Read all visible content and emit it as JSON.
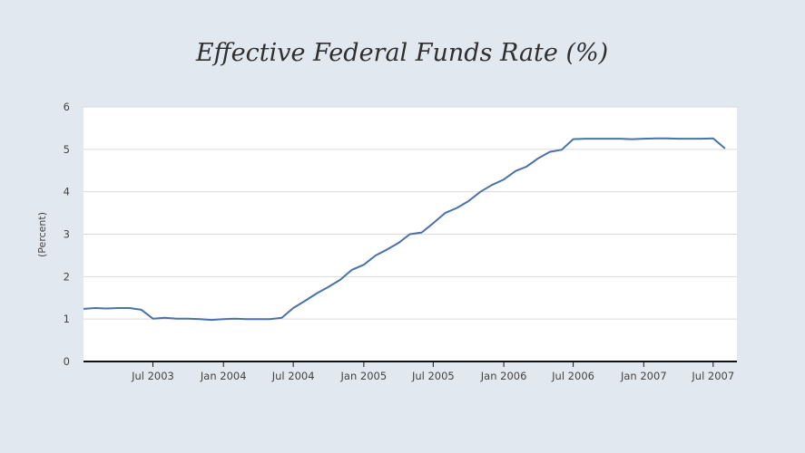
{
  "chart_data": {
    "type": "line",
    "title": "Effective Federal Funds Rate (%)",
    "xlabel": "",
    "ylabel": "(Percent)",
    "ylim": [
      0,
      6
    ],
    "xlim": [
      "2003-01-01",
      "2007-09-01"
    ],
    "y_ticks": [
      0,
      1,
      2,
      3,
      4,
      5,
      6
    ],
    "x_ticks": [
      {
        "date": "2003-07-01",
        "label": "Jul 2003"
      },
      {
        "date": "2004-01-01",
        "label": "Jan 2004"
      },
      {
        "date": "2004-07-01",
        "label": "Jul 2004"
      },
      {
        "date": "2005-01-01",
        "label": "Jan 2005"
      },
      {
        "date": "2005-07-01",
        "label": "Jul 2005"
      },
      {
        "date": "2006-01-01",
        "label": "Jan 2006"
      },
      {
        "date": "2006-07-01",
        "label": "Jul 2006"
      },
      {
        "date": "2007-01-01",
        "label": "Jan 2007"
      },
      {
        "date": "2007-07-01",
        "label": "Jul 2007"
      }
    ],
    "grid": true,
    "series": [
      {
        "color": "#4a72a8",
        "x": [
          "2003-01-01",
          "2003-02-01",
          "2003-03-01",
          "2003-04-01",
          "2003-05-01",
          "2003-06-01",
          "2003-07-01",
          "2003-08-01",
          "2003-09-01",
          "2003-10-01",
          "2003-11-01",
          "2003-12-01",
          "2004-01-01",
          "2004-02-01",
          "2004-03-01",
          "2004-04-01",
          "2004-05-01",
          "2004-06-01",
          "2004-07-01",
          "2004-08-01",
          "2004-09-01",
          "2004-10-01",
          "2004-11-01",
          "2004-12-01",
          "2005-01-01",
          "2005-02-01",
          "2005-03-01",
          "2005-04-01",
          "2005-05-01",
          "2005-06-01",
          "2005-07-01",
          "2005-08-01",
          "2005-09-01",
          "2005-10-01",
          "2005-11-01",
          "2005-12-01",
          "2006-01-01",
          "2006-02-01",
          "2006-03-01",
          "2006-04-01",
          "2006-05-01",
          "2006-06-01",
          "2006-07-01",
          "2006-08-01",
          "2006-09-01",
          "2006-10-01",
          "2006-11-01",
          "2006-12-01",
          "2007-01-01",
          "2007-02-01",
          "2007-03-01",
          "2007-04-01",
          "2007-05-01",
          "2007-06-01",
          "2007-07-01",
          "2007-08-01"
        ],
        "values": [
          1.24,
          1.26,
          1.25,
          1.26,
          1.26,
          1.22,
          1.01,
          1.03,
          1.01,
          1.01,
          1.0,
          0.98,
          1.0,
          1.01,
          1.0,
          1.0,
          1.0,
          1.03,
          1.26,
          1.43,
          1.61,
          1.76,
          1.93,
          2.16,
          2.28,
          2.5,
          2.63,
          2.79,
          3.0,
          3.04,
          3.26,
          3.5,
          3.62,
          3.78,
          4.0,
          4.16,
          4.29,
          4.49,
          4.59,
          4.79,
          4.94,
          4.99,
          5.24,
          5.25,
          5.25,
          5.25,
          5.25,
          5.24,
          5.25,
          5.26,
          5.26,
          5.25,
          5.25,
          5.25,
          5.26,
          5.02
        ]
      }
    ]
  }
}
